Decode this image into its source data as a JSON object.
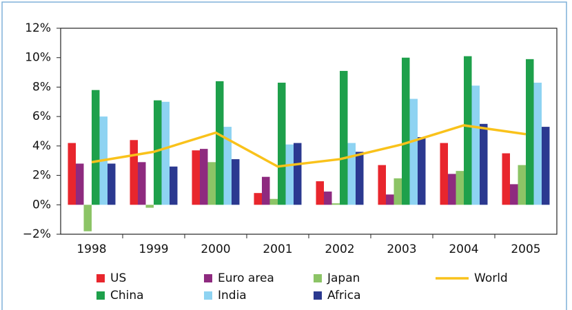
{
  "chart_data": {
    "type": "bar",
    "categories": [
      "1998",
      "1999",
      "2000",
      "2001",
      "2002",
      "2003",
      "2004",
      "2005"
    ],
    "series": [
      {
        "name": "US",
        "color": "#e8262d",
        "values": [
          4.2,
          4.4,
          3.7,
          0.8,
          1.6,
          2.7,
          4.2,
          3.5
        ]
      },
      {
        "name": "Euro area",
        "color": "#8e2a7f",
        "values": [
          2.8,
          2.9,
          3.8,
          1.9,
          0.9,
          0.7,
          2.1,
          1.4
        ]
      },
      {
        "name": "Japan",
        "color": "#8cc466",
        "values": [
          -1.8,
          -0.2,
          2.9,
          0.4,
          0.1,
          1.8,
          2.3,
          2.7
        ]
      },
      {
        "name": "China",
        "color": "#1ea04b",
        "values": [
          7.8,
          7.1,
          8.4,
          8.3,
          9.1,
          10.0,
          10.1,
          9.9
        ]
      },
      {
        "name": "India",
        "color": "#8ed3f2",
        "values": [
          6.0,
          7.0,
          5.3,
          4.1,
          4.2,
          7.2,
          8.1,
          8.3
        ]
      },
      {
        "name": "Africa",
        "color": "#2b3990",
        "values": [
          2.8,
          2.6,
          3.1,
          4.2,
          3.6,
          4.6,
          5.5,
          5.3
        ]
      },
      {
        "name": "World",
        "color": "#f9c21b",
        "type": "line",
        "values": [
          2.9,
          3.6,
          4.9,
          2.6,
          3.1,
          4.1,
          5.4,
          4.8
        ]
      }
    ],
    "ylim": [
      -2,
      12
    ],
    "yticks": [
      {
        "value": -2,
        "label": "−2%"
      },
      {
        "value": 0,
        "label": "0%"
      },
      {
        "value": 2,
        "label": "2%"
      },
      {
        "value": 4,
        "label": "4%"
      },
      {
        "value": 6,
        "label": "6%"
      },
      {
        "value": 8,
        "label": "8%"
      },
      {
        "value": 10,
        "label": "10%"
      },
      {
        "value": 12,
        "label": "12%"
      }
    ],
    "grid": false
  }
}
